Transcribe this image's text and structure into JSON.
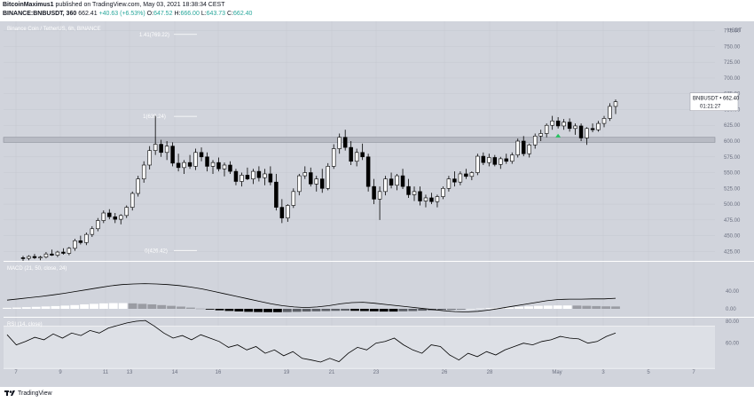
{
  "header": {
    "author": "BitcoinMaximus1",
    "published_text": "published on TradingView.com, May 03, 2021 18:38:34 CEST",
    "symbol_line": "BINANCE:BNBUSDT, 360",
    "last": "662.41",
    "change": "+40.63 (+6.53%)",
    "o_label": "O:",
    "o": "647.52",
    "h_label": "H:",
    "h": "666.00",
    "l_label": "L:",
    "l": "643.73",
    "c_label": "C:",
    "c": "662.40"
  },
  "chart_title": "Binance Coin / TetherUS, 6h, BINANCE",
  "price_axis_unit": "USDT",
  "price_tag": {
    "symbol": "BNBUSDT",
    "price": "662.40",
    "countdown": "01:21:27"
  },
  "fib_levels": [
    {
      "label": "1.41(769.22)",
      "price": 769.22
    },
    {
      "label": "1(639.24)",
      "price": 639.24
    },
    {
      "label": "0(426.42)",
      "price": 426.42
    }
  ],
  "support_zone": [
    598,
    606
  ],
  "macd_title": "MACD (21, 50, close, 24)",
  "rsi_title": "RSI (14, close)",
  "footer": {
    "brand": "TradingView"
  },
  "colors": {
    "pane_bg": "#d1d4dc",
    "grid": "#c5c8d0",
    "candle_up": "#ffffff",
    "candle_down": "#000000",
    "macd_line": "#000000",
    "rsi_line": "#000000",
    "signal_arrow": "#22c55e",
    "axis_bg": "#d1d4dc"
  },
  "chart_data": [
    {
      "type": "candlestick",
      "title": "Binance Coin / TetherUS, 6h, BINANCE",
      "y_unit": "USDT",
      "ylim": [
        410,
        790
      ],
      "y_ticks": [
        425,
        450,
        475,
        500,
        525,
        550,
        575,
        600,
        625,
        650,
        675,
        700,
        725,
        750,
        775
      ],
      "x_ticks": [
        "7",
        "9",
        "11",
        "13",
        "14",
        "16",
        "19",
        "21",
        "23",
        "26",
        "28",
        "May",
        "3",
        "5",
        "7"
      ],
      "candles": [
        [
          415,
          418,
          410,
          414
        ],
        [
          414,
          419,
          411,
          417
        ],
        [
          417,
          421,
          413,
          415
        ],
        [
          415,
          418,
          411,
          416
        ],
        [
          416,
          424,
          414,
          421
        ],
        [
          421,
          428,
          418,
          419
        ],
        [
          419,
          426,
          416,
          424
        ],
        [
          424,
          430,
          420,
          422
        ],
        [
          422,
          432,
          419,
          430
        ],
        [
          430,
          445,
          426,
          442
        ],
        [
          442,
          450,
          436,
          439
        ],
        [
          439,
          455,
          435,
          452
        ],
        [
          452,
          465,
          448,
          461
        ],
        [
          461,
          478,
          457,
          474
        ],
        [
          474,
          490,
          470,
          486
        ],
        [
          486,
          492,
          476,
          480
        ],
        [
          480,
          486,
          470,
          476
        ],
        [
          476,
          484,
          468,
          482
        ],
        [
          482,
          498,
          478,
          495
        ],
        [
          495,
          520,
          490,
          517
        ],
        [
          517,
          545,
          512,
          540
        ],
        [
          540,
          568,
          534,
          562
        ],
        [
          562,
          592,
          555,
          585
        ],
        [
          585,
          640,
          578,
          595
        ],
        [
          595,
          602,
          575,
          582
        ],
        [
          582,
          600,
          570,
          592
        ],
        [
          592,
          598,
          560,
          565
        ],
        [
          565,
          580,
          552,
          558
        ],
        [
          558,
          570,
          548,
          566
        ],
        [
          566,
          578,
          556,
          560
        ],
        [
          560,
          588,
          554,
          582
        ],
        [
          582,
          590,
          568,
          575
        ],
        [
          575,
          582,
          552,
          560
        ],
        [
          560,
          570,
          548,
          566
        ],
        [
          566,
          574,
          552,
          556
        ],
        [
          556,
          566,
          544,
          562
        ],
        [
          562,
          568,
          548,
          552
        ],
        [
          552,
          556,
          530,
          536
        ],
        [
          536,
          550,
          528,
          546
        ],
        [
          546,
          558,
          538,
          540
        ],
        [
          540,
          556,
          532,
          552
        ],
        [
          552,
          560,
          536,
          542
        ],
        [
          542,
          556,
          530,
          548
        ],
        [
          548,
          560,
          530,
          535
        ],
        [
          535,
          548,
          490,
          495
        ],
        [
          495,
          508,
          470,
          478
        ],
        [
          478,
          500,
          472,
          498
        ],
        [
          498,
          525,
          494,
          520
        ],
        [
          520,
          548,
          514,
          545
        ],
        [
          545,
          560,
          540,
          550
        ],
        [
          550,
          558,
          528,
          532
        ],
        [
          532,
          545,
          520,
          540
        ],
        [
          540,
          556,
          518,
          525
        ],
        [
          525,
          565,
          522,
          560
        ],
        [
          560,
          595,
          556,
          588
        ],
        [
          588,
          612,
          580,
          606
        ],
        [
          606,
          618,
          585,
          590
        ],
        [
          590,
          600,
          562,
          568
        ],
        [
          568,
          588,
          560,
          582
        ],
        [
          582,
          596,
          570,
          575
        ],
        [
          575,
          580,
          520,
          528
        ],
        [
          528,
          540,
          500,
          508
        ],
        [
          508,
          528,
          475,
          520
        ],
        [
          520,
          545,
          514,
          540
        ],
        [
          540,
          550,
          525,
          530
        ],
        [
          530,
          548,
          522,
          545
        ],
        [
          545,
          556,
          524,
          528
        ],
        [
          528,
          540,
          510,
          515
        ],
        [
          515,
          528,
          505,
          520
        ],
        [
          520,
          528,
          498,
          505
        ],
        [
          505,
          515,
          495,
          510
        ],
        [
          510,
          518,
          500,
          504
        ],
        [
          504,
          515,
          495,
          512
        ],
        [
          512,
          528,
          508,
          525
        ],
        [
          525,
          545,
          520,
          540
        ],
        [
          540,
          552,
          528,
          535
        ],
        [
          535,
          552,
          530,
          548
        ],
        [
          548,
          556,
          540,
          544
        ],
        [
          544,
          552,
          538,
          550
        ],
        [
          550,
          580,
          546,
          576
        ],
        [
          576,
          582,
          562,
          566
        ],
        [
          566,
          580,
          560,
          574
        ],
        [
          574,
          578,
          560,
          563
        ],
        [
          563,
          575,
          556,
          572
        ],
        [
          572,
          580,
          564,
          568
        ],
        [
          568,
          582,
          564,
          578
        ],
        [
          578,
          604,
          574,
          600
        ],
        [
          600,
          608,
          576,
          580
        ],
        [
          580,
          596,
          574,
          594
        ],
        [
          594,
          612,
          588,
          608
        ],
        [
          608,
          618,
          600,
          612
        ],
        [
          612,
          628,
          606,
          625
        ],
        [
          625,
          640,
          618,
          632
        ],
        [
          632,
          638,
          620,
          624
        ],
        [
          624,
          635,
          618,
          630
        ],
        [
          630,
          636,
          615,
          620
        ],
        [
          620,
          628,
          610,
          624
        ],
        [
          624,
          628,
          600,
          605
        ],
        [
          605,
          622,
          594,
          620
        ],
        [
          620,
          628,
          614,
          618
        ],
        [
          618,
          632,
          615,
          628
        ],
        [
          628,
          640,
          622,
          636
        ],
        [
          636,
          660,
          632,
          655
        ],
        [
          655,
          666,
          643,
          662.4
        ]
      ]
    },
    {
      "type": "macd",
      "title": "MACD (21, 50, close, 24)",
      "y_ticks": [
        40,
        0
      ],
      "line": [
        0.28,
        0.32,
        0.36,
        0.4,
        0.45,
        0.5,
        0.56,
        0.62,
        0.68,
        0.74,
        0.78,
        0.8,
        0.81,
        0.8,
        0.78,
        0.75,
        0.7,
        0.64,
        0.56,
        0.48,
        0.4,
        0.32,
        0.24,
        0.16,
        0.1,
        0.06,
        0.04,
        0.06,
        0.1,
        0.16,
        0.2,
        0.21,
        0.18,
        0.14,
        0.1,
        0.06,
        0.02,
        -0.02,
        -0.06,
        -0.09,
        -0.1,
        -0.08,
        -0.04,
        0.02,
        0.08,
        0.14,
        0.2,
        0.26,
        0.3,
        0.31,
        0.31,
        0.32,
        0.32,
        0.34
      ],
      "histogram": [
        0.08,
        0.1,
        0.13,
        0.16,
        0.19,
        0.22,
        0.26,
        0.3,
        0.36,
        0.4,
        0.44,
        0.46,
        0.46,
        0.44,
        0.4,
        0.36,
        0.3,
        0.24,
        0.18,
        0.1,
        0.02,
        -0.06,
        -0.12,
        -0.17,
        -0.21,
        -0.24,
        -0.26,
        -0.27,
        -0.27,
        -0.26,
        -0.24,
        -0.22,
        -0.2,
        -0.18,
        -0.16,
        -0.15,
        -0.16,
        -0.18,
        -0.2,
        -0.22,
        -0.22,
        -0.2,
        -0.18,
        -0.15,
        -0.12,
        -0.09,
        -0.06,
        -0.03,
        0.0,
        0.03,
        0.06,
        0.09,
        0.12,
        0.16,
        0.2,
        0.24,
        0.26,
        0.27,
        0.27,
        0.26,
        0.24,
        0.22,
        0.2,
        0.19
      ]
    },
    {
      "type": "line",
      "title": "RSI (14, close)",
      "y_ticks": [
        80,
        60
      ],
      "values": [
        70,
        58,
        62,
        67,
        64,
        71,
        66,
        72,
        69,
        75,
        72,
        78,
        81,
        84,
        86,
        87,
        80,
        72,
        66,
        69,
        64,
        70,
        66,
        62,
        55,
        58,
        52,
        56,
        48,
        52,
        45,
        50,
        42,
        40,
        35,
        42,
        38,
        48,
        55,
        52,
        60,
        62,
        66,
        58,
        52,
        48,
        58,
        56,
        46,
        40,
        48,
        44,
        50,
        46,
        52,
        56,
        60,
        58,
        62,
        64,
        68,
        66,
        65,
        60,
        62,
        68,
        72
      ]
    }
  ]
}
